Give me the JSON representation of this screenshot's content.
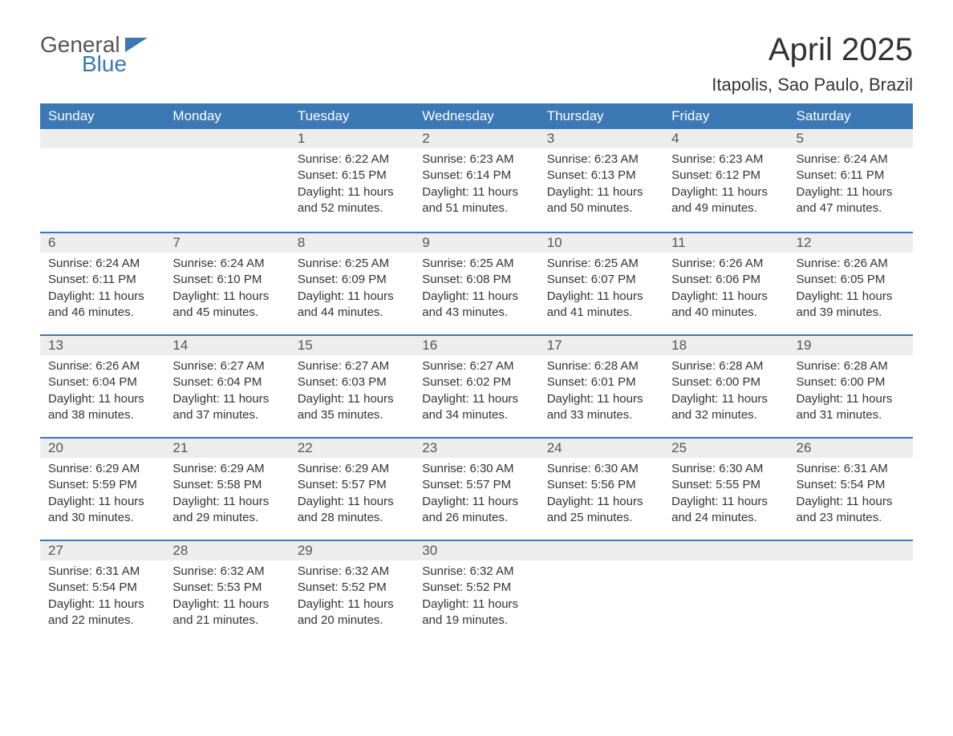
{
  "logo": {
    "word1": "General",
    "word2": "Blue"
  },
  "title": "April 2025",
  "location": "Itapolis, Sao Paulo, Brazil",
  "colors": {
    "header_bg": "#3c78b4",
    "header_text": "#ffffff",
    "daynum_bg": "#ededed",
    "border": "#3c78b4",
    "text": "#333333",
    "logo_gray": "#555555",
    "logo_blue": "#3c78b4",
    "page_bg": "#ffffff"
  },
  "day_headers": [
    "Sunday",
    "Monday",
    "Tuesday",
    "Wednesday",
    "Thursday",
    "Friday",
    "Saturday"
  ],
  "weeks": [
    [
      null,
      null,
      {
        "n": "1",
        "sr": "6:22 AM",
        "ss": "6:15 PM",
        "dl": "11 hours and 52 minutes."
      },
      {
        "n": "2",
        "sr": "6:23 AM",
        "ss": "6:14 PM",
        "dl": "11 hours and 51 minutes."
      },
      {
        "n": "3",
        "sr": "6:23 AM",
        "ss": "6:13 PM",
        "dl": "11 hours and 50 minutes."
      },
      {
        "n": "4",
        "sr": "6:23 AM",
        "ss": "6:12 PM",
        "dl": "11 hours and 49 minutes."
      },
      {
        "n": "5",
        "sr": "6:24 AM",
        "ss": "6:11 PM",
        "dl": "11 hours and 47 minutes."
      }
    ],
    [
      {
        "n": "6",
        "sr": "6:24 AM",
        "ss": "6:11 PM",
        "dl": "11 hours and 46 minutes."
      },
      {
        "n": "7",
        "sr": "6:24 AM",
        "ss": "6:10 PM",
        "dl": "11 hours and 45 minutes."
      },
      {
        "n": "8",
        "sr": "6:25 AM",
        "ss": "6:09 PM",
        "dl": "11 hours and 44 minutes."
      },
      {
        "n": "9",
        "sr": "6:25 AM",
        "ss": "6:08 PM",
        "dl": "11 hours and 43 minutes."
      },
      {
        "n": "10",
        "sr": "6:25 AM",
        "ss": "6:07 PM",
        "dl": "11 hours and 41 minutes."
      },
      {
        "n": "11",
        "sr": "6:26 AM",
        "ss": "6:06 PM",
        "dl": "11 hours and 40 minutes."
      },
      {
        "n": "12",
        "sr": "6:26 AM",
        "ss": "6:05 PM",
        "dl": "11 hours and 39 minutes."
      }
    ],
    [
      {
        "n": "13",
        "sr": "6:26 AM",
        "ss": "6:04 PM",
        "dl": "11 hours and 38 minutes."
      },
      {
        "n": "14",
        "sr": "6:27 AM",
        "ss": "6:04 PM",
        "dl": "11 hours and 37 minutes."
      },
      {
        "n": "15",
        "sr": "6:27 AM",
        "ss": "6:03 PM",
        "dl": "11 hours and 35 minutes."
      },
      {
        "n": "16",
        "sr": "6:27 AM",
        "ss": "6:02 PM",
        "dl": "11 hours and 34 minutes."
      },
      {
        "n": "17",
        "sr": "6:28 AM",
        "ss": "6:01 PM",
        "dl": "11 hours and 33 minutes."
      },
      {
        "n": "18",
        "sr": "6:28 AM",
        "ss": "6:00 PM",
        "dl": "11 hours and 32 minutes."
      },
      {
        "n": "19",
        "sr": "6:28 AM",
        "ss": "6:00 PM",
        "dl": "11 hours and 31 minutes."
      }
    ],
    [
      {
        "n": "20",
        "sr": "6:29 AM",
        "ss": "5:59 PM",
        "dl": "11 hours and 30 minutes."
      },
      {
        "n": "21",
        "sr": "6:29 AM",
        "ss": "5:58 PM",
        "dl": "11 hours and 29 minutes."
      },
      {
        "n": "22",
        "sr": "6:29 AM",
        "ss": "5:57 PM",
        "dl": "11 hours and 28 minutes."
      },
      {
        "n": "23",
        "sr": "6:30 AM",
        "ss": "5:57 PM",
        "dl": "11 hours and 26 minutes."
      },
      {
        "n": "24",
        "sr": "6:30 AM",
        "ss": "5:56 PM",
        "dl": "11 hours and 25 minutes."
      },
      {
        "n": "25",
        "sr": "6:30 AM",
        "ss": "5:55 PM",
        "dl": "11 hours and 24 minutes."
      },
      {
        "n": "26",
        "sr": "6:31 AM",
        "ss": "5:54 PM",
        "dl": "11 hours and 23 minutes."
      }
    ],
    [
      {
        "n": "27",
        "sr": "6:31 AM",
        "ss": "5:54 PM",
        "dl": "11 hours and 22 minutes."
      },
      {
        "n": "28",
        "sr": "6:32 AM",
        "ss": "5:53 PM",
        "dl": "11 hours and 21 minutes."
      },
      {
        "n": "29",
        "sr": "6:32 AM",
        "ss": "5:52 PM",
        "dl": "11 hours and 20 minutes."
      },
      {
        "n": "30",
        "sr": "6:32 AM",
        "ss": "5:52 PM",
        "dl": "11 hours and 19 minutes."
      },
      null,
      null,
      null
    ]
  ],
  "labels": {
    "sunrise": "Sunrise: ",
    "sunset": "Sunset: ",
    "daylight": "Daylight: "
  }
}
